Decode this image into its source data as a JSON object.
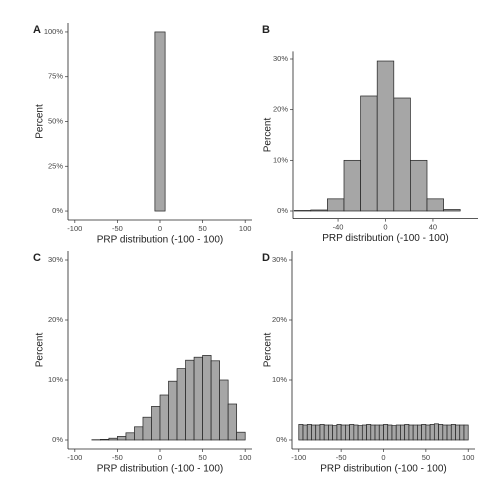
{
  "chart_data": [
    {
      "type": "histogram",
      "panel": "A",
      "x_label": "PRP distribution (-100 - 100)",
      "y_label": "Percent",
      "bins": [
        -90,
        -78,
        -66,
        -54,
        -42,
        -30,
        -18,
        -6,
        6,
        18,
        30,
        42,
        54,
        66,
        78,
        90
      ],
      "values": [
        0,
        0,
        0,
        0,
        0,
        0,
        0,
        100,
        0,
        0,
        0,
        0,
        0,
        0,
        0
      ],
      "color": "#a6a6a6",
      "edge_color": "#222222",
      "xlim": [
        -108,
        108
      ],
      "xticks": [
        -100,
        -50,
        0,
        50,
        100
      ],
      "ylim": [
        -5,
        105
      ],
      "yticks": [
        {
          "value": 0,
          "label": "0%"
        },
        {
          "value": 25,
          "label": "25%"
        },
        {
          "value": 50,
          "label": "50%"
        },
        {
          "value": 75,
          "label": "75%"
        },
        {
          "value": 100,
          "label": "100%"
        }
      ]
    },
    {
      "type": "histogram",
      "panel": "B",
      "x_label": "PRP distribution (-100 - 100)",
      "y_label": "Percent",
      "bins": [
        -77,
        -63,
        -49,
        -35,
        -21,
        -7,
        7,
        21,
        35,
        49,
        63,
        77
      ],
      "values": [
        0.1,
        0.2,
        2.4,
        10,
        22.7,
        29.6,
        22.3,
        10,
        2.4,
        0.3,
        0
      ],
      "color": "#a6a6a6",
      "edge_color": "#222222",
      "xlim": [
        -78,
        78
      ],
      "xticks": [
        -40,
        0,
        40
      ],
      "ylim": [
        -1.5,
        31.5
      ],
      "yticks": [
        {
          "value": 0,
          "label": "0%"
        },
        {
          "value": 10,
          "label": "10%"
        },
        {
          "value": 20,
          "label": "20%"
        },
        {
          "value": 30,
          "label": "30%"
        }
      ]
    },
    {
      "type": "histogram",
      "panel": "C",
      "x_label": "PRP distribution (-100 - 100)",
      "y_label": "Percent",
      "bins": [
        -100,
        -90,
        -80,
        -70,
        -60,
        -50,
        -40,
        -30,
        -20,
        -10,
        0,
        10,
        20,
        30,
        40,
        50,
        60,
        70,
        80,
        90,
        100
      ],
      "values": [
        0,
        0,
        0.05,
        0.1,
        0.3,
        0.6,
        1.2,
        2.2,
        3.8,
        5.6,
        7.5,
        9.8,
        11.9,
        13.3,
        13.8,
        14.1,
        13.2,
        10,
        6,
        1.3
      ],
      "color": "#a6a6a6",
      "edge_color": "#222222",
      "xlim": [
        -108,
        108
      ],
      "xticks": [
        -100,
        -50,
        0,
        50,
        100
      ],
      "ylim": [
        -1.5,
        31.5
      ],
      "yticks": [
        {
          "value": 0,
          "label": "0%"
        },
        {
          "value": 10,
          "label": "10%"
        },
        {
          "value": 20,
          "label": "20%"
        },
        {
          "value": 30,
          "label": "30%"
        }
      ]
    },
    {
      "type": "histogram",
      "panel": "D",
      "x_label": "PRP distribution (-100 - 100)",
      "y_label": "Percent",
      "bins": [
        -100,
        -95,
        -90,
        -85,
        -80,
        -75,
        -70,
        -65,
        -60,
        -55,
        -50,
        -45,
        -40,
        -35,
        -30,
        -25,
        -20,
        -15,
        -10,
        -5,
        0,
        5,
        10,
        15,
        20,
        25,
        30,
        35,
        40,
        45,
        50,
        55,
        60,
        65,
        70,
        75,
        80,
        85,
        90,
        95,
        100
      ],
      "values": [
        2.6,
        2.5,
        2.6,
        2.5,
        2.5,
        2.6,
        2.5,
        2.5,
        2.4,
        2.6,
        2.5,
        2.5,
        2.6,
        2.5,
        2.4,
        2.5,
        2.6,
        2.5,
        2.5,
        2.5,
        2.6,
        2.5,
        2.4,
        2.5,
        2.5,
        2.6,
        2.5,
        2.5,
        2.5,
        2.6,
        2.5,
        2.6,
        2.7,
        2.6,
        2.5,
        2.5,
        2.6,
        2.5,
        2.5,
        2.5
      ],
      "color": "#a6a6a6",
      "edge_color": "#222222",
      "xlim": [
        -108,
        108
      ],
      "xticks": [
        -100,
        -50,
        0,
        50,
        100
      ],
      "ylim": [
        -1.5,
        31.5
      ],
      "yticks": [
        {
          "value": 0,
          "label": "0%"
        },
        {
          "value": 10,
          "label": "10%"
        },
        {
          "value": 20,
          "label": "20%"
        },
        {
          "value": 30,
          "label": "30%"
        }
      ]
    }
  ]
}
